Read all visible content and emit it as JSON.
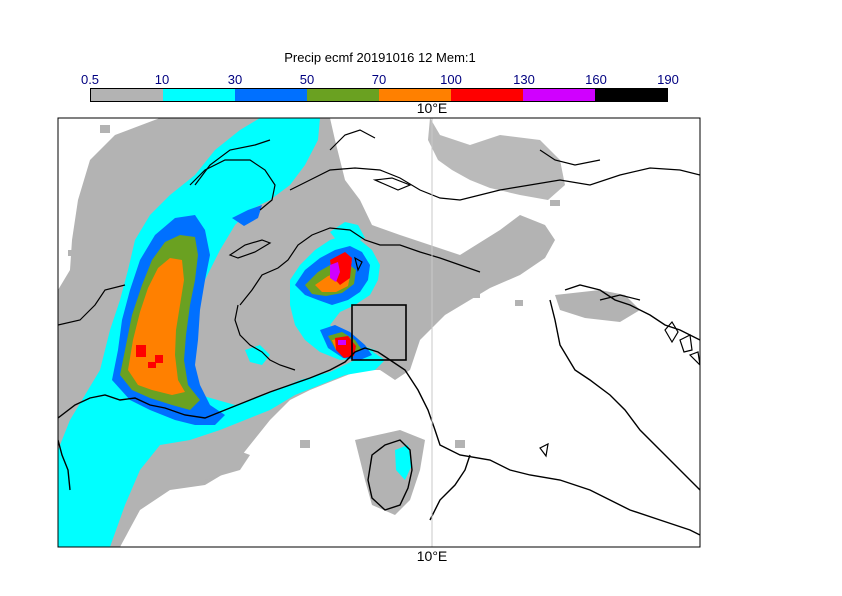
{
  "title": "Precip ecmf 20191016 12 Mem:1",
  "colorbar": {
    "ticks": [
      "0.5",
      "10",
      "30",
      "50",
      "70",
      "100",
      "130",
      "160",
      "190"
    ],
    "colors": [
      "#b3b3b3",
      "#00ffff",
      "#0070ff",
      "#6aa121",
      "#ff8000",
      "#ff0000",
      "#d000ff",
      "#000000"
    ]
  },
  "axis": {
    "top_label": "10°E",
    "bottom_label": "10°E"
  },
  "colors": {
    "frame": "#000000",
    "coast": "#000000",
    "grid": "#c8c8c8"
  }
}
